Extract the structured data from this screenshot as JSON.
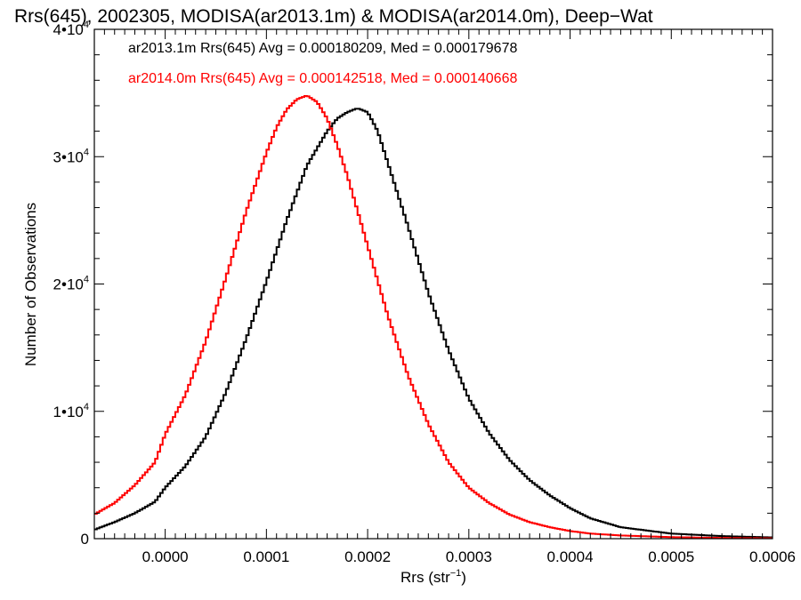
{
  "chart_data": {
    "type": "step-histogram",
    "title": "Rrs(645), 2002305, MODISA(ar2013.1m) & MODISA(ar2014.0m), Deep−Wat",
    "xlabel": {
      "base": "Rrs (str",
      "sup": "−1",
      "close": ")"
    },
    "ylabel": "Number of Observations",
    "xlim": [
      -7e-05,
      0.0006
    ],
    "ylim": [
      0,
      40000
    ],
    "x_ticks": [
      {
        "value": 0.0,
        "label": "0.0000"
      },
      {
        "value": 0.0001,
        "label": "0.0001"
      },
      {
        "value": 0.0002,
        "label": "0.0002"
      },
      {
        "value": 0.0003,
        "label": "0.0003"
      },
      {
        "value": 0.0004,
        "label": "0.0004"
      },
      {
        "value": 0.0005,
        "label": "0.0005"
      },
      {
        "value": 0.0006,
        "label": "0.0006"
      }
    ],
    "y_ticks": [
      {
        "value": 0,
        "mant": "0",
        "exp": ""
      },
      {
        "value": 10000,
        "mant": "1•10",
        "exp": "4"
      },
      {
        "value": 20000,
        "mant": "2•10",
        "exp": "4"
      },
      {
        "value": 30000,
        "mant": "3•10",
        "exp": "4"
      },
      {
        "value": 40000,
        "mant": "4•10",
        "exp": "4"
      }
    ],
    "grid": false,
    "legend_position": "top-left",
    "series": [
      {
        "name": "ar2013.1m",
        "label": "ar2013.1m Rrs(645) Avg = 0.000180209, Med = 0.000179678",
        "color": "#000000",
        "x": [
          -7e-05,
          -5e-05,
          -3e-05,
          -1e-05,
          0.0,
          2e-05,
          4e-05,
          6e-05,
          8e-05,
          0.0001,
          0.00012,
          0.00014,
          0.00016,
          0.00017,
          0.00018,
          0.00019,
          0.0002,
          0.00021,
          0.00022,
          0.00024,
          0.00026,
          0.00028,
          0.0003,
          0.00032,
          0.00034,
          0.00036,
          0.00038,
          0.0004,
          0.00042,
          0.00045,
          0.0005,
          0.00055,
          0.0006
        ],
        "y": [
          700,
          1300,
          2000,
          2900,
          4000,
          5700,
          8000,
          11500,
          15700,
          20200,
          25000,
          29300,
          32000,
          33000,
          33500,
          33800,
          33500,
          32000,
          29500,
          24500,
          19300,
          14800,
          11000,
          8300,
          6200,
          4600,
          3400,
          2400,
          1600,
          900,
          400,
          200,
          100
        ]
      },
      {
        "name": "ar2014.0m",
        "label": "ar2014.0m Rrs(645) Avg = 0.000142518, Med = 0.000140668",
        "color": "#ff0000",
        "x": [
          -7e-05,
          -5e-05,
          -3e-05,
          -1e-05,
          0.0,
          2e-05,
          4e-05,
          6e-05,
          8e-05,
          0.0001,
          0.00011,
          0.00012,
          0.00013,
          0.00014,
          0.00015,
          0.00016,
          0.00017,
          0.00018,
          0.0002,
          0.00022,
          0.00024,
          0.00026,
          0.00028,
          0.0003,
          0.00032,
          0.00034,
          0.00036,
          0.00038,
          0.0004,
          0.00042,
          0.00045,
          0.0005,
          0.00055,
          0.0006
        ],
        "y": [
          1900,
          2800,
          4200,
          6000,
          8200,
          11300,
          15500,
          20500,
          25700,
          30300,
          32300,
          33700,
          34500,
          34800,
          34300,
          33000,
          30900,
          28500,
          23000,
          17500,
          12800,
          9000,
          6000,
          4000,
          2800,
          1900,
          1300,
          900,
          600,
          400,
          250,
          120,
          60,
          30
        ]
      }
    ]
  }
}
